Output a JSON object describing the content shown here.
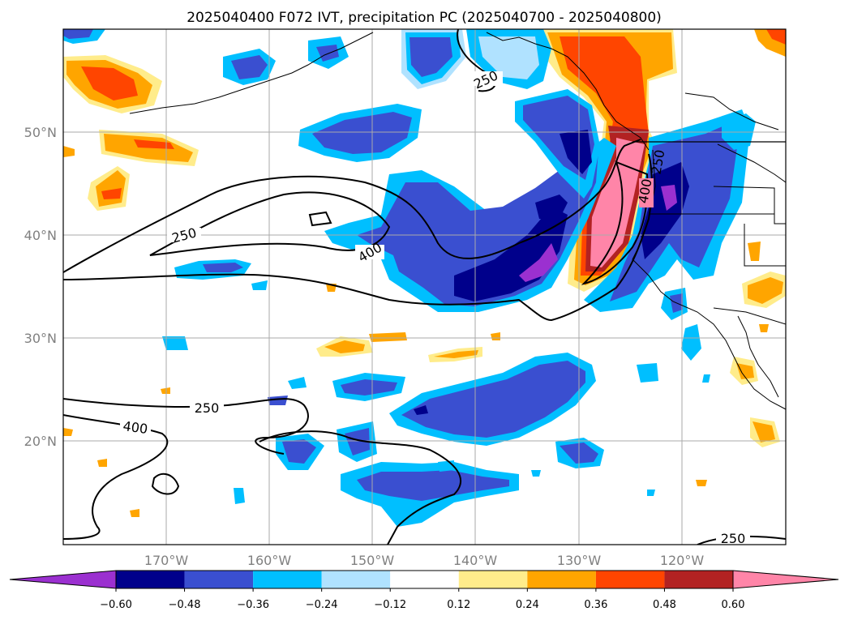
{
  "title": "2025040400 F072 IVT, precipitation PC (2025040700 - 2025040800)",
  "map": {
    "lat_ticks": [
      "50°N",
      "40°N",
      "30°N",
      "20°N"
    ],
    "lon_ticks": [
      "170°W",
      "160°W",
      "150°W",
      "140°W",
      "130°W",
      "120°W"
    ],
    "ivt_contour_labels": [
      "250",
      "250",
      "400",
      "250",
      "400",
      "250",
      "400",
      "250"
    ]
  },
  "colorbar": {
    "colors": [
      "#9b30d0",
      "#00008b",
      "#3a4fd0",
      "#00bfff",
      "#b0e2ff",
      "#ffffff",
      "#ffec8b",
      "#ffa500",
      "#ff4500",
      "#b22222",
      "#ff85a8"
    ],
    "tick_labels": [
      "−0.60",
      "−0.48",
      "−0.36",
      "−0.24",
      "−0.12",
      "0.12",
      "0.24",
      "0.36",
      "0.48",
      "0.60"
    ]
  }
}
